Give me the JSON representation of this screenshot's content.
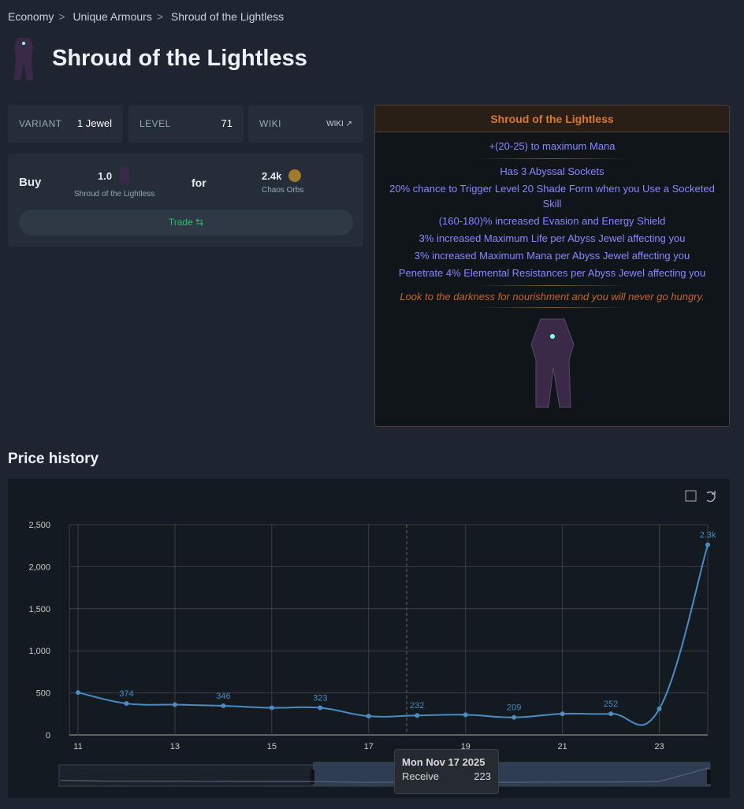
{
  "breadcrumb": [
    "Economy",
    "Unique Armours",
    "Shroud of the Lightless"
  ],
  "title": "Shroud of the Lightless",
  "stats": {
    "variant_label": "VARIANT",
    "variant": "1 Jewel",
    "level_label": "LEVEL",
    "level": "71",
    "wiki_label": "WIKI",
    "wiki_link": "WIKI"
  },
  "trade": {
    "buy": "Buy",
    "amount": "1.0",
    "item": "Shroud of the Lightless",
    "for": "for",
    "price": "2.4k",
    "currency": "Chaos Orbs",
    "button": "Trade ⇆"
  },
  "item": {
    "name": "Shroud of the Lightless",
    "implicit": "+(20-25) to maximum Mana",
    "mods": [
      "Has 3 Abyssal Sockets",
      "20% chance to Trigger Level 20 Shade Form when you Use a Socketed Skill",
      "(160-180)% increased Evasion and Energy Shield",
      "3% increased Maximum Life per Abyss Jewel affecting you",
      "3% increased Maximum Mana per Abyss Jewel affecting you",
      "Penetrate 4% Elemental Resistances per Abyss Jewel affecting you"
    ],
    "flavor": "Look to the darkness for nourishment and you will never go hungry."
  },
  "section_title": "Price history",
  "chart_data": {
    "type": "line",
    "x": [
      11,
      12,
      13,
      14,
      15,
      16,
      17,
      18,
      19,
      20,
      21,
      22,
      23,
      24
    ],
    "values": [
      505,
      374,
      360,
      346,
      323,
      323,
      223,
      232,
      240,
      209,
      252,
      252,
      310,
      2260
    ],
    "point_labels": {
      "12": "374",
      "14": "346",
      "16": "323",
      "18": "232",
      "20": "209",
      "22": "252",
      "24": "2.3k"
    },
    "xticks": [
      "11",
      "13",
      "15",
      "17",
      "19",
      "21",
      "23"
    ],
    "yticks": [
      "0",
      "500",
      "1,000",
      "1,500",
      "2,000",
      "2,500"
    ],
    "ylim": [
      0,
      2500
    ],
    "color": "#4a8cc4"
  },
  "tooltip": {
    "date": "Mon Nov 17 2025",
    "label": "Receive",
    "value": "223"
  }
}
